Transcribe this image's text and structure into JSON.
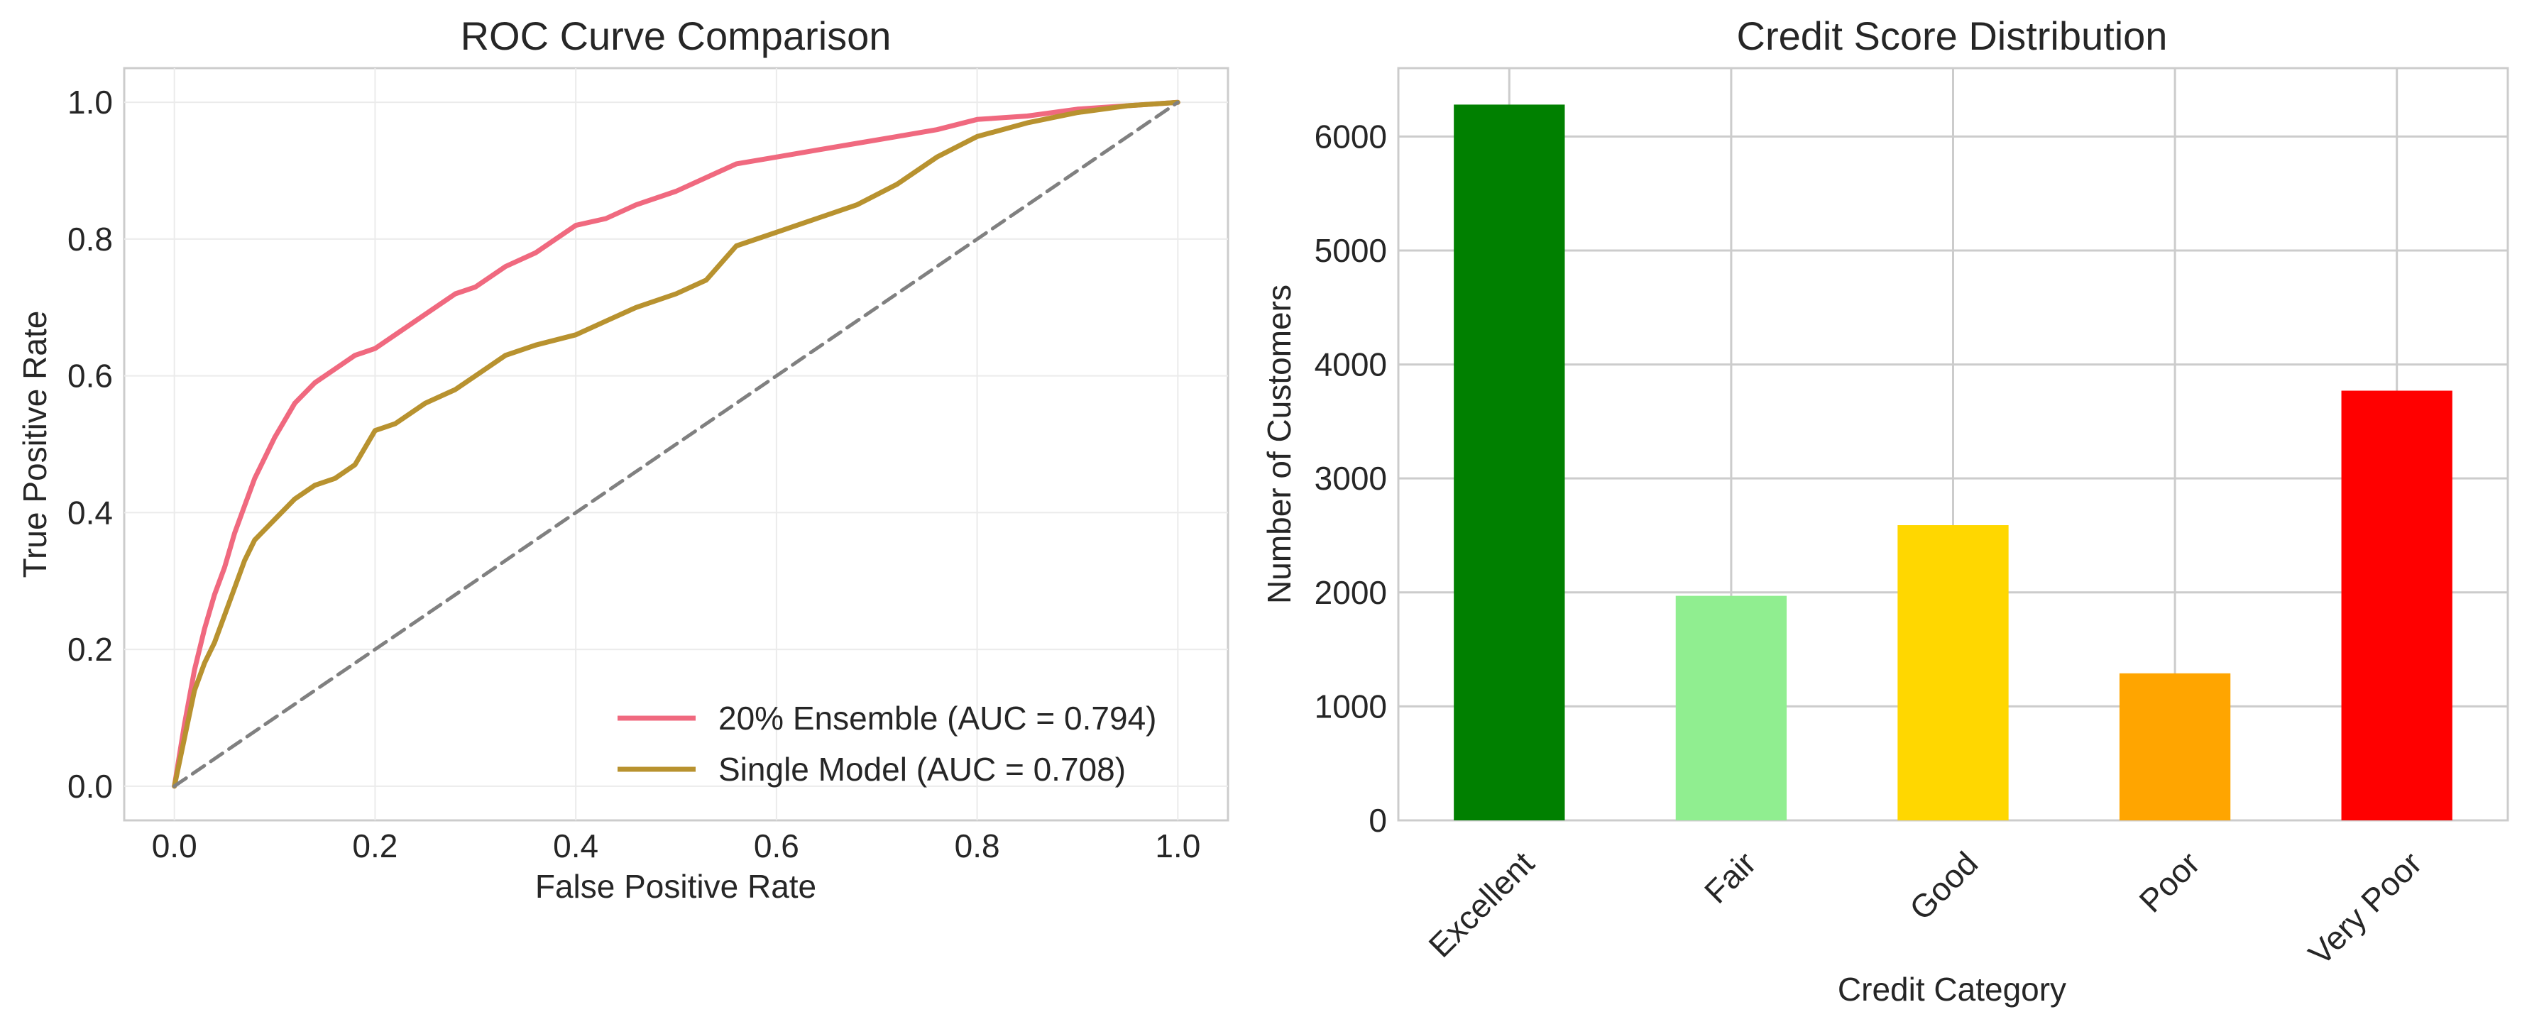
{
  "chart_data": [
    {
      "type": "line",
      "title": "ROC Curve Comparison",
      "xlabel": "False Positive Rate",
      "ylabel": "True Positive Rate",
      "xlim": [
        -0.05,
        1.05
      ],
      "ylim": [
        -0.05,
        1.05
      ],
      "xticks": [
        "0.0",
        "0.2",
        "0.4",
        "0.6",
        "0.8",
        "1.0"
      ],
      "yticks": [
        "0.0",
        "0.2",
        "0.4",
        "0.6",
        "0.8",
        "1.0"
      ],
      "grid": true,
      "legend_position": "lower right",
      "series": [
        {
          "name": "20% Ensemble (AUC = 0.794)",
          "color": "#f0697f",
          "x": [
            0.0,
            0.01,
            0.02,
            0.03,
            0.04,
            0.05,
            0.06,
            0.07,
            0.08,
            0.1,
            0.12,
            0.14,
            0.16,
            0.18,
            0.2,
            0.22,
            0.25,
            0.28,
            0.3,
            0.33,
            0.36,
            0.4,
            0.43,
            0.46,
            0.5,
            0.53,
            0.56,
            0.6,
            0.64,
            0.68,
            0.72,
            0.76,
            0.8,
            0.85,
            0.9,
            0.95,
            1.0
          ],
          "y": [
            0.0,
            0.09,
            0.17,
            0.23,
            0.28,
            0.32,
            0.37,
            0.41,
            0.45,
            0.51,
            0.56,
            0.59,
            0.61,
            0.63,
            0.64,
            0.66,
            0.69,
            0.72,
            0.73,
            0.76,
            0.78,
            0.82,
            0.83,
            0.85,
            0.87,
            0.89,
            0.91,
            0.92,
            0.93,
            0.94,
            0.95,
            0.96,
            0.975,
            0.98,
            0.99,
            0.995,
            1.0
          ]
        },
        {
          "name": "Single Model (AUC = 0.708)",
          "color": "#b8922f",
          "x": [
            0.0,
            0.01,
            0.02,
            0.03,
            0.04,
            0.05,
            0.06,
            0.07,
            0.08,
            0.1,
            0.12,
            0.14,
            0.16,
            0.18,
            0.2,
            0.22,
            0.25,
            0.28,
            0.3,
            0.33,
            0.36,
            0.4,
            0.43,
            0.46,
            0.5,
            0.53,
            0.56,
            0.6,
            0.64,
            0.68,
            0.72,
            0.76,
            0.8,
            0.85,
            0.9,
            0.95,
            1.0
          ],
          "y": [
            0.0,
            0.07,
            0.14,
            0.18,
            0.21,
            0.25,
            0.29,
            0.33,
            0.36,
            0.39,
            0.42,
            0.44,
            0.45,
            0.47,
            0.52,
            0.53,
            0.56,
            0.58,
            0.6,
            0.63,
            0.645,
            0.66,
            0.68,
            0.7,
            0.72,
            0.74,
            0.79,
            0.81,
            0.83,
            0.85,
            0.88,
            0.92,
            0.95,
            0.97,
            0.985,
            0.995,
            1.0
          ]
        },
        {
          "name": "",
          "color": "#808080",
          "dashed": true,
          "x": [
            0.0,
            1.0
          ],
          "y": [
            0.0,
            1.0
          ]
        }
      ]
    },
    {
      "type": "bar",
      "title": "Credit Score Distribution",
      "xlabel": "Credit Category",
      "ylabel": "Number of Customers",
      "ylim": [
        0,
        6600
      ],
      "yticks": [
        "0",
        "1000",
        "2000",
        "3000",
        "4000",
        "5000",
        "6000"
      ],
      "grid": true,
      "categories": [
        "Excellent",
        "Fair",
        "Good",
        "Poor",
        "Very Poor"
      ],
      "values": [
        6280,
        1970,
        2590,
        1290,
        3770
      ],
      "colors": [
        "#008000",
        "#90ee90",
        "#ffd700",
        "#ffa500",
        "#ff0000"
      ]
    }
  ]
}
